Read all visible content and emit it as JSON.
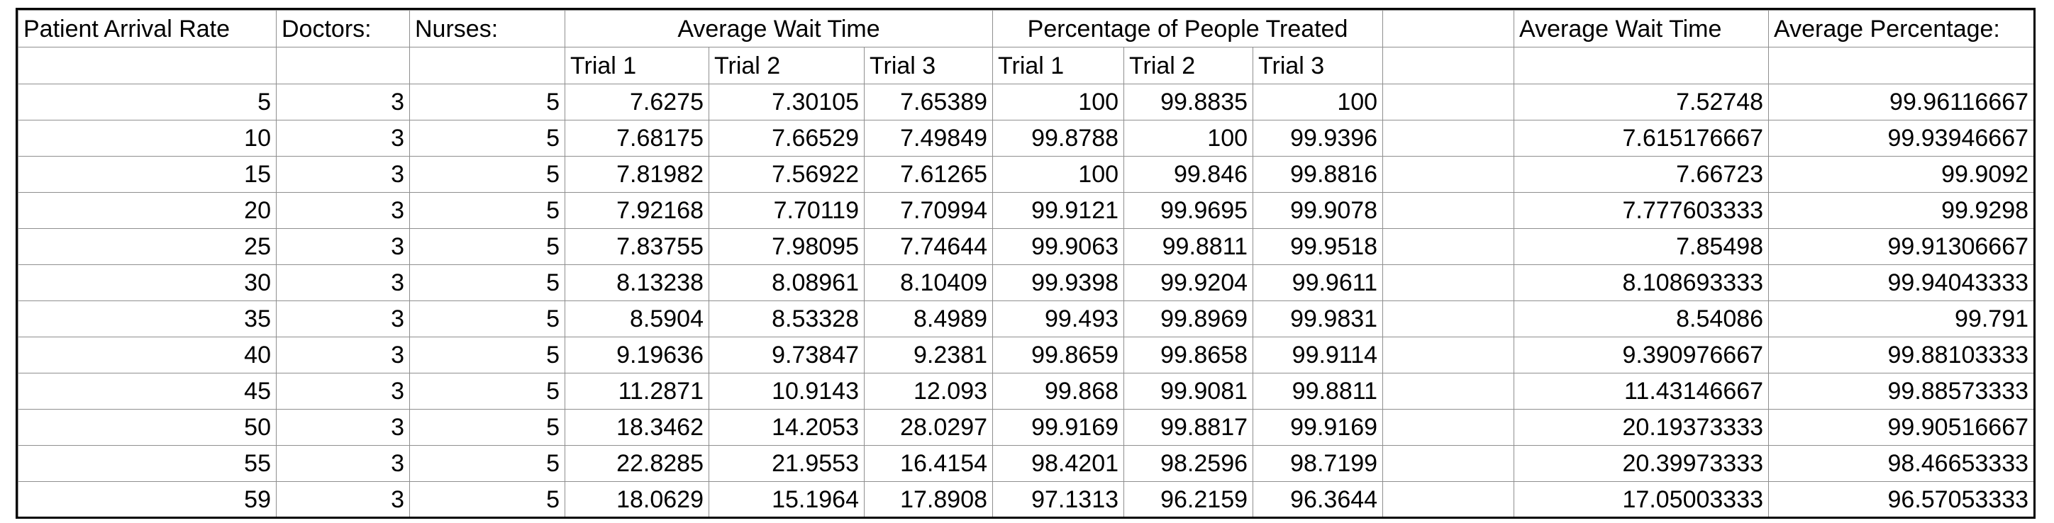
{
  "headers": {
    "row1": {
      "patient_arrival_rate": "Patient Arrival Rate",
      "doctors": "Doctors:",
      "nurses": "Nurses:",
      "average_wait_time": "Average Wait Time",
      "percentage_treated": "Percentage of People Treated",
      "blank": "",
      "avg_wait_time_summary": "Average Wait Time",
      "avg_percentage": "Average Percentage:"
    },
    "row2": {
      "wait_trial_1": "Trial 1",
      "wait_trial_2": "Trial 2",
      "wait_trial_3": "Trial 3",
      "pct_trial_1": "Trial 1",
      "pct_trial_2": "Trial 2",
      "pct_trial_3": "Trial 3"
    }
  },
  "rows": [
    [
      "5",
      "3",
      "5",
      "7.6275",
      "7.30105",
      "7.65389",
      "100",
      "99.8835",
      "100",
      "",
      "7.52748",
      "99.96116667"
    ],
    [
      "10",
      "3",
      "5",
      "7.68175",
      "7.66529",
      "7.49849",
      "99.8788",
      "100",
      "99.9396",
      "",
      "7.615176667",
      "99.93946667"
    ],
    [
      "15",
      "3",
      "5",
      "7.81982",
      "7.56922",
      "7.61265",
      "100",
      "99.846",
      "99.8816",
      "",
      "7.66723",
      "99.9092"
    ],
    [
      "20",
      "3",
      "5",
      "7.92168",
      "7.70119",
      "7.70994",
      "99.9121",
      "99.9695",
      "99.9078",
      "",
      "7.777603333",
      "99.9298"
    ],
    [
      "25",
      "3",
      "5",
      "7.83755",
      "7.98095",
      "7.74644",
      "99.9063",
      "99.8811",
      "99.9518",
      "",
      "7.85498",
      "99.91306667"
    ],
    [
      "30",
      "3",
      "5",
      "8.13238",
      "8.08961",
      "8.10409",
      "99.9398",
      "99.9204",
      "99.9611",
      "",
      "8.108693333",
      "99.94043333"
    ],
    [
      "35",
      "3",
      "5",
      "8.5904",
      "8.53328",
      "8.4989",
      "99.493",
      "99.8969",
      "99.9831",
      "",
      "8.54086",
      "99.791"
    ],
    [
      "40",
      "3",
      "5",
      "9.19636",
      "9.73847",
      "9.2381",
      "99.8659",
      "99.8658",
      "99.9114",
      "",
      "9.390976667",
      "99.88103333"
    ],
    [
      "45",
      "3",
      "5",
      "11.2871",
      "10.9143",
      "12.093",
      "99.868",
      "99.9081",
      "99.8811",
      "",
      "11.43146667",
      "99.88573333"
    ],
    [
      "50",
      "3",
      "5",
      "18.3462",
      "14.2053",
      "28.0297",
      "99.9169",
      "99.8817",
      "99.9169",
      "",
      "20.19373333",
      "99.90516667"
    ],
    [
      "55",
      "3",
      "5",
      "22.8285",
      "21.9553",
      "16.4154",
      "98.4201",
      "98.2596",
      "98.7199",
      "",
      "20.39973333",
      "98.46653333"
    ],
    [
      "59",
      "3",
      "5",
      "18.0629",
      "15.1964",
      "17.8908",
      "97.1313",
      "96.2159",
      "96.3644",
      "",
      "17.05003333",
      "96.57053333"
    ]
  ]
}
